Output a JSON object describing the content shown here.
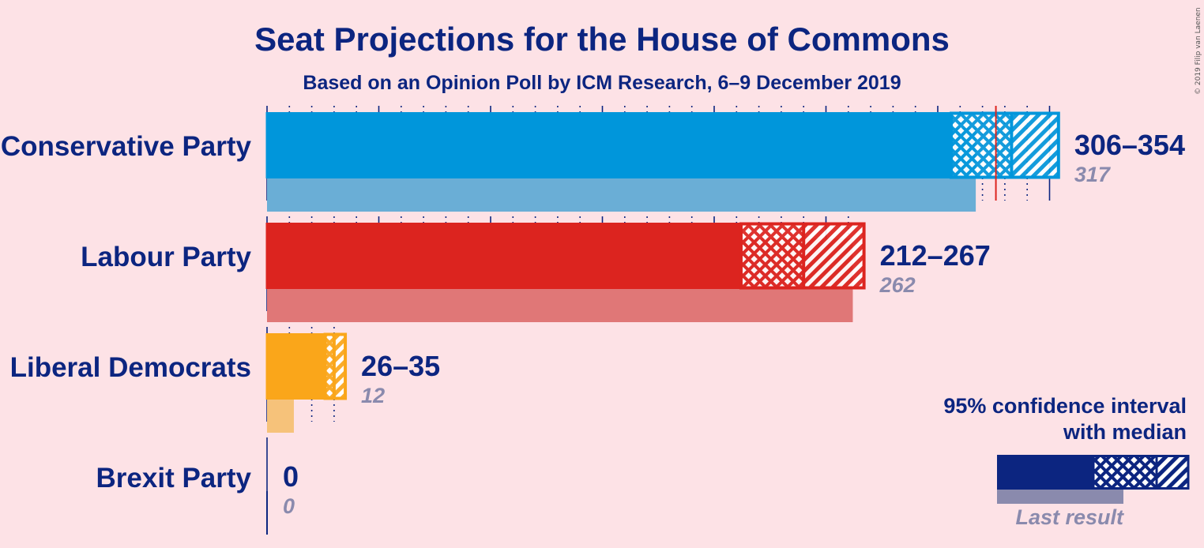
{
  "title": "Seat Projections for the House of Commons",
  "subtitle": "Based on an Opinion Poll by ICM Research, 6–9 December 2019",
  "copyright": "© 2019 Filip van Laenen",
  "legend": {
    "line1": "95% confidence interval",
    "line2": "with median",
    "last_result": "Last result"
  },
  "chart_data": {
    "type": "bar",
    "orientation": "horizontal",
    "title": "Seat Projections for the House of Commons",
    "subtitle": "Based on an Opinion Poll by ICM Research, 6–9 December 2019",
    "majority_line": 326,
    "grid": "dotted every 10 seats, solid every 50 seats",
    "legend_position": "bottom-right",
    "parties": [
      {
        "name": "Conservative Party",
        "low": 306,
        "median": 333,
        "high": 354,
        "range_label": "306–354",
        "last": 317,
        "last_label": "317",
        "color": "#0096db",
        "last_color": "#6aaed6"
      },
      {
        "name": "Labour Party",
        "low": 212,
        "median": 240,
        "high": 267,
        "range_label": "212–267",
        "last": 262,
        "last_label": "262",
        "color": "#dc241f",
        "last_color": "#e07777"
      },
      {
        "name": "Liberal Democrats",
        "low": 26,
        "median": 30,
        "high": 35,
        "range_label": "26–35",
        "last": 12,
        "last_label": "12",
        "color": "#faa61a",
        "last_color": "#f6c27a"
      },
      {
        "name": "Brexit Party",
        "low": 0,
        "median": 0,
        "high": 0,
        "range_label": "0",
        "last": 0,
        "last_label": "0",
        "color": "#12b6cf",
        "last_color": "#8a8aad"
      }
    ]
  }
}
